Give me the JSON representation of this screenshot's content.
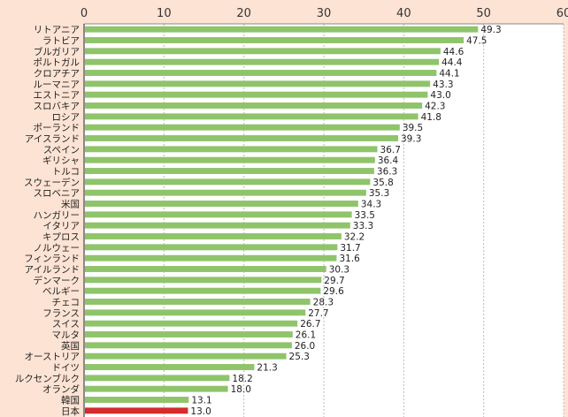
{
  "chart_data": {
    "type": "bar",
    "orientation": "horizontal",
    "title": "",
    "xlabel": "",
    "ylabel": "",
    "xlim": [
      0,
      60
    ],
    "x_ticks": [
      0,
      10,
      20,
      30,
      40,
      50,
      60
    ],
    "grid": true,
    "legend": "none",
    "categories": [
      "リトアニア",
      "ラトビア",
      "ブルガリア",
      "ポルトガル",
      "クロアチア",
      "ルーマニア",
      "エストニア",
      "スロバキア",
      "ロシア",
      "ポーランド",
      "アイスランド",
      "スペイン",
      "ギリシャ",
      "トルコ",
      "スウェーデン",
      "スロベニア",
      "米国",
      "ハンガリー",
      "イタリア",
      "キプロス",
      "ノルウェー",
      "フィンランド",
      "アイルランド",
      "デンマーク",
      "ベルギー",
      "チェコ",
      "フランス",
      "スイス",
      "マルタ",
      "英国",
      "オーストリア",
      "ドイツ",
      "ルクセンブルク",
      "オランダ",
      "韓国",
      "日本"
    ],
    "values": [
      49.3,
      47.5,
      44.6,
      44.4,
      44.1,
      43.3,
      43.0,
      42.3,
      41.8,
      39.5,
      39.3,
      36.7,
      36.4,
      36.3,
      35.8,
      35.3,
      34.3,
      33.5,
      33.3,
      32.2,
      31.7,
      31.6,
      30.3,
      29.7,
      29.6,
      28.3,
      27.7,
      26.7,
      26.1,
      26.0,
      25.3,
      21.3,
      18.2,
      18.0,
      13.1,
      13.0
    ],
    "value_labels": [
      "49.3",
      "47.5",
      "44.6",
      "44.4",
      "44.1",
      "43.3",
      "43.0",
      "42.3",
      "41.8",
      "39.5",
      "39.3",
      "36.7",
      "36.4",
      "36.3",
      "35.8",
      "35.3",
      "34.3",
      "33.5",
      "33.3",
      "32.2",
      "31.7",
      "31.6",
      "30.3",
      "29.7",
      "29.6",
      "28.3",
      "27.7",
      "26.7",
      "26.1",
      "26.0",
      "25.3",
      "21.3",
      "18.2",
      "18.0",
      "13.1",
      "13.0"
    ],
    "highlight_category": "日本",
    "colors": {
      "bar": "#8fc46a",
      "bar_highlight": "#d42b2b",
      "plot_background": "#ffffff",
      "page_background": "#fde3d4",
      "grid": "#bbbbbb",
      "title": "#c0392b"
    }
  }
}
